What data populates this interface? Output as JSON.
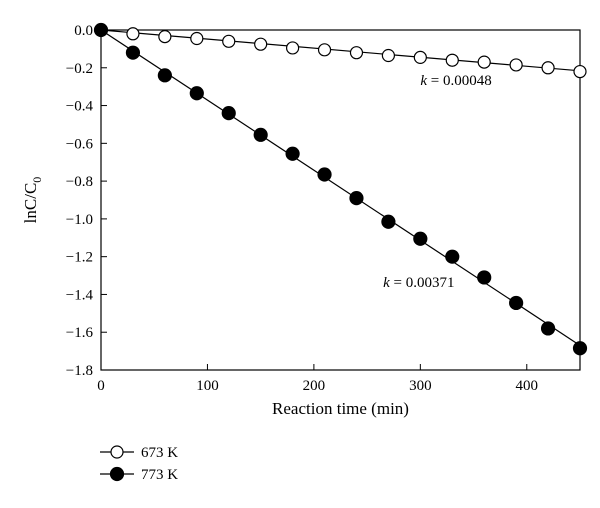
{
  "chart_data": {
    "type": "scatter",
    "xlabel": "Reaction time (min)",
    "ylabel_main": "lnC/C",
    "ylabel_sub": "0",
    "xlim": [
      0,
      450
    ],
    "ylim": [
      -1.8,
      0.0
    ],
    "x_ticks": [
      0,
      100,
      200,
      300,
      400
    ],
    "x_tick_labels": [
      "0",
      "100",
      "200",
      "300",
      "400"
    ],
    "y_ticks": [
      0.0,
      -0.2,
      -0.4,
      -0.6,
      -0.8,
      -1.0,
      -1.2,
      -1.4,
      -1.6,
      -1.8
    ],
    "y_tick_labels": [
      "0.0",
      "−0.2",
      "−0.4",
      "−0.6",
      "−0.8",
      "−1.0",
      "−1.2",
      "−1.4",
      "−1.6",
      "−1.8"
    ],
    "grid": false,
    "legend_position": "below-left",
    "series": [
      {
        "name": "673 K",
        "marker": "open-circle",
        "x": [
          0,
          30,
          60,
          90,
          120,
          150,
          180,
          210,
          240,
          270,
          300,
          330,
          360,
          390,
          420,
          450
        ],
        "y": [
          0.0,
          -0.02,
          -0.035,
          -0.045,
          -0.06,
          -0.075,
          -0.095,
          -0.105,
          -0.12,
          -0.135,
          -0.145,
          -0.16,
          -0.17,
          -0.185,
          -0.2,
          -0.22
        ],
        "fit_line": {
          "x": [
            0,
            450
          ],
          "y": [
            0.0,
            -0.216
          ]
        },
        "annotation": {
          "k_label": "k",
          "equals_text": " = 0.00048",
          "x": 300,
          "y": -0.29
        }
      },
      {
        "name": "773 K",
        "marker": "filled-circle",
        "x": [
          0,
          30,
          60,
          90,
          120,
          150,
          180,
          210,
          240,
          270,
          300,
          330,
          360,
          390,
          420,
          450
        ],
        "y": [
          0.0,
          -0.12,
          -0.24,
          -0.335,
          -0.44,
          -0.555,
          -0.655,
          -0.765,
          -0.89,
          -1.015,
          -1.105,
          -1.2,
          -1.31,
          -1.445,
          -1.58,
          -1.685
        ],
        "fit_line": {
          "x": [
            0,
            450
          ],
          "y": [
            0.0,
            -1.67
          ]
        },
        "annotation": {
          "k_label": "k",
          "equals_text": " = 0.00371",
          "x": 265,
          "y": -1.36
        }
      }
    ]
  }
}
